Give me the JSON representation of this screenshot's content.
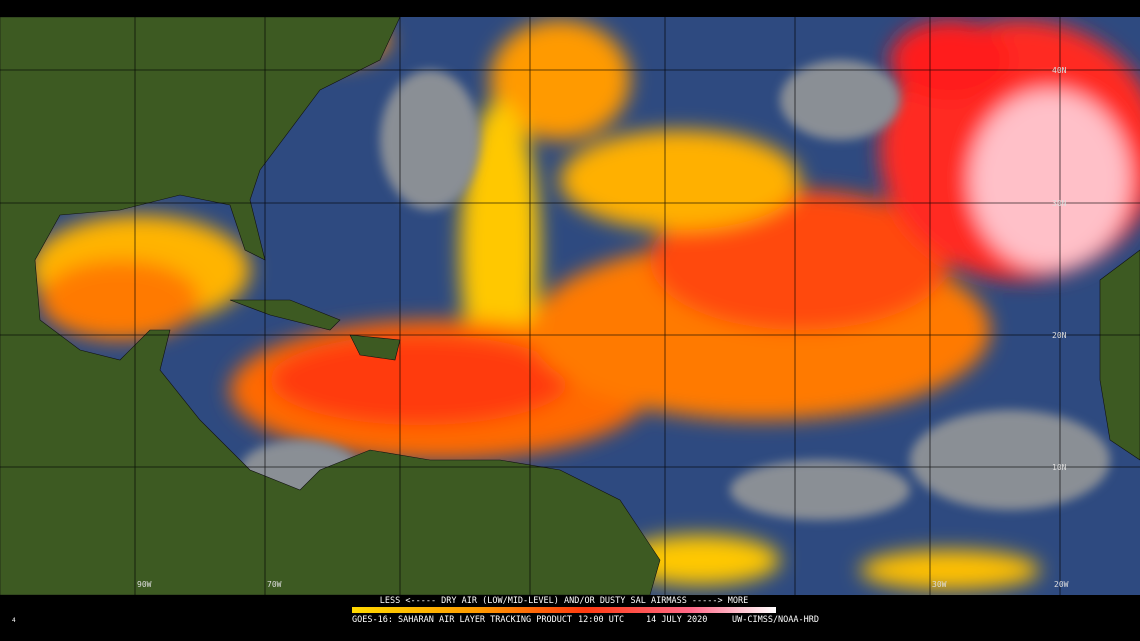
{
  "legend": {
    "caption": "LESS <----- DRY AIR (LOW/MID-LEVEL) AND/OR DUSTY SAL AIRMASS -----> MORE"
  },
  "footer": {
    "product": "GOES-16: SAHARAN AIR LAYER TRACKING PRODUCT",
    "time": "12:00 UTC",
    "date": "14 JULY 2020",
    "credit": "UW-CIMSS/NOAA-HRD",
    "corner": "4"
  },
  "map": {
    "lat_labels": [
      "40N",
      "30N",
      "20N",
      "10N"
    ],
    "lon_labels": [
      "90W",
      "70W",
      "30W",
      "20W"
    ]
  }
}
